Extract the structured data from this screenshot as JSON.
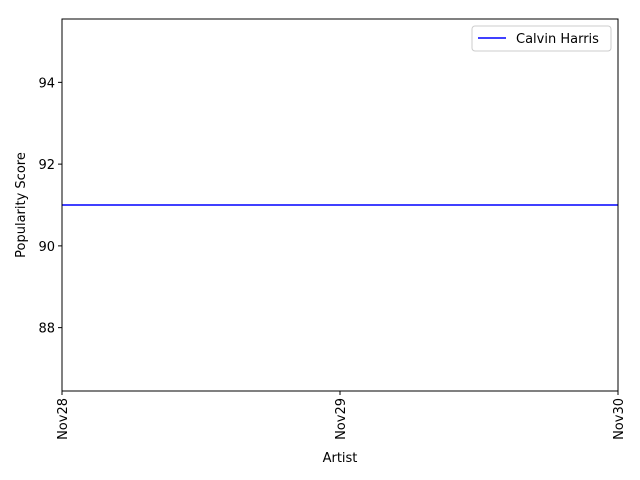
{
  "chart_data": {
    "type": "line",
    "title": "",
    "xlabel": "Artist",
    "ylabel": "Popularity Score",
    "x": [
      "Nov28",
      "Nov29",
      "Nov30"
    ],
    "xticks": [
      "Nov28",
      "Nov29",
      "Nov30"
    ],
    "yticks": [
      88,
      90,
      92,
      94
    ],
    "ylim": [
      86.45,
      95.55
    ],
    "series": [
      {
        "name": "Calvin Harris",
        "color": "#0000ff",
        "values": [
          91,
          91,
          91
        ]
      }
    ],
    "legend": "top-right",
    "grid": false
  }
}
